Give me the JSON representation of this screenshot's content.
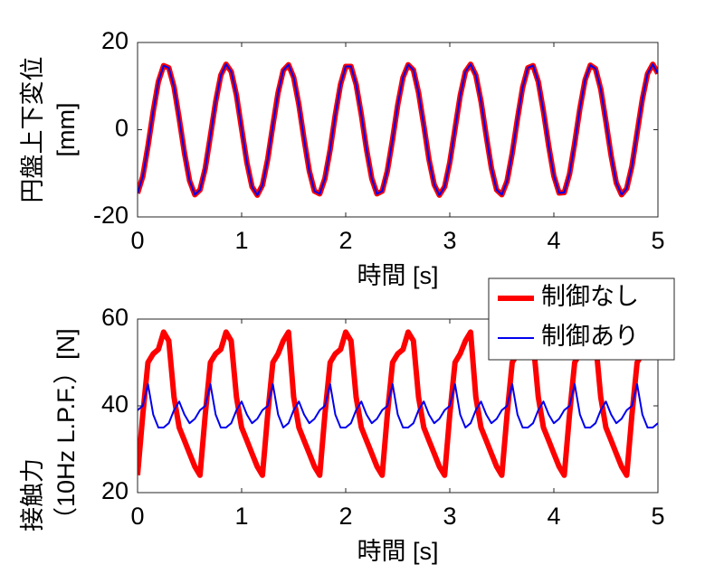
{
  "chart_data": [
    {
      "type": "line",
      "ylabel": [
        "円盤上下変位",
        "[mm]"
      ],
      "xlabel": "時間 [s]",
      "xlim": [
        0,
        5
      ],
      "xticks": [
        0,
        1,
        2,
        3,
        4,
        5
      ],
      "ylim": [
        -20,
        20
      ],
      "yticks": [
        -20,
        0,
        20
      ],
      "x": [
        0,
        0.05,
        0.1,
        0.15,
        0.2,
        0.25,
        0.3,
        0.35,
        0.4,
        0.45,
        0.5,
        0.55,
        0.6,
        0.65,
        0.7,
        0.75,
        0.8,
        0.85,
        0.9,
        0.95,
        1,
        1.05,
        1.1,
        1.15,
        1.2,
        1.25,
        1.3,
        1.35,
        1.4,
        1.45,
        1.5,
        1.55,
        1.6,
        1.65,
        1.7,
        1.75,
        1.8,
        1.85,
        1.9,
        1.95,
        2,
        2.05,
        2.1,
        2.15,
        2.2,
        2.25,
        2.3,
        2.35,
        2.4,
        2.45,
        2.5,
        2.55,
        2.6,
        2.65,
        2.7,
        2.75,
        2.8,
        2.85,
        2.9,
        2.95,
        3,
        3.05,
        3.1,
        3.15,
        3.2,
        3.25,
        3.3,
        3.35,
        3.4,
        3.45,
        3.5,
        3.55,
        3.6,
        3.65,
        3.7,
        3.75,
        3.8,
        3.85,
        3.9,
        3.95,
        4,
        4.05,
        4.1,
        4.15,
        4.2,
        4.25,
        4.3,
        4.35,
        4.4,
        4.45,
        4.5,
        4.55,
        4.6,
        4.65,
        4.7,
        4.75,
        4.8,
        4.85,
        4.9,
        4.95,
        5
      ],
      "series": [
        {
          "name": "制御なし",
          "color": "#ff0000",
          "width": 6,
          "values": [
            -14.6,
            -10.7,
            -3.8,
            4.2,
            11.0,
            14.7,
            14.2,
            9.8,
            2.6,
            -5.3,
            -11.7,
            -14.9,
            -13.8,
            -8.9,
            -1.4,
            6.4,
            12.5,
            15.0,
            13.3,
            7.9,
            0.2,
            -7.5,
            -13.1,
            -15.0,
            -12.7,
            -6.8,
            1.0,
            8.5,
            13.6,
            14.9,
            12.0,
            5.7,
            -2.2,
            -9.5,
            -14.1,
            -14.7,
            -11.2,
            -4.6,
            3.4,
            10.4,
            14.5,
            14.5,
            10.4,
            3.4,
            -4.5,
            -11.2,
            -14.7,
            -14.1,
            -9.5,
            -2.2,
            5.7,
            12.0,
            14.9,
            13.7,
            8.5,
            1.0,
            -6.8,
            -12.6,
            -15.0,
            -13.1,
            -7.5,
            0.2,
            7.8,
            13.3,
            15.0,
            12.5,
            6.5,
            -1.4,
            -8.8,
            -13.8,
            -14.9,
            -11.8,
            -5.4,
            2.5,
            9.7,
            14.2,
            14.7,
            11.0,
            4.2,
            -3.7,
            -10.6,
            -14.5,
            -14.4,
            -10.2,
            -3.1,
            4.9,
            11.4,
            14.8,
            14.0,
            9.3,
            1.9,
            -6.0,
            -12.2,
            -14.9,
            -13.5,
            -8.3,
            -0.7,
            7.0,
            12.8,
            15.0,
            12.9
          ]
        },
        {
          "name": "制御あり",
          "color": "#0000ee",
          "width": 2,
          "values": [
            -14.6,
            -10.7,
            -3.8,
            4.2,
            11.0,
            14.7,
            14.2,
            9.8,
            2.6,
            -5.3,
            -11.7,
            -14.9,
            -13.8,
            -8.9,
            -1.4,
            6.4,
            12.5,
            15.0,
            13.3,
            7.9,
            0.2,
            -7.5,
            -13.1,
            -15.0,
            -12.7,
            -6.8,
            1.0,
            8.5,
            13.6,
            14.9,
            12.0,
            5.7,
            -2.2,
            -9.5,
            -14.1,
            -14.7,
            -11.2,
            -4.6,
            3.4,
            10.4,
            14.5,
            14.5,
            10.4,
            3.4,
            -4.5,
            -11.2,
            -14.7,
            -14.1,
            -9.5,
            -2.2,
            5.7,
            12.0,
            14.9,
            13.7,
            8.5,
            1.0,
            -6.8,
            -12.6,
            -15.0,
            -13.1,
            -7.5,
            0.2,
            7.8,
            13.3,
            15.0,
            12.5,
            6.5,
            -1.4,
            -8.8,
            -13.8,
            -14.9,
            -11.8,
            -5.4,
            2.5,
            9.7,
            14.2,
            14.7,
            11.0,
            4.2,
            -3.7,
            -10.6,
            -14.5,
            -14.4,
            -10.2,
            -3.1,
            4.9,
            11.4,
            14.8,
            14.0,
            9.3,
            1.9,
            -6.0,
            -12.2,
            -14.9,
            -13.5,
            -8.3,
            -0.7,
            7.0,
            12.8,
            15.0,
            12.9
          ]
        }
      ]
    },
    {
      "type": "line",
      "ylabel": [
        "接触力",
        "（10Hz L.P.F.）[N]"
      ],
      "xlabel": "時間 [s]",
      "xlim": [
        0,
        5
      ],
      "xticks": [
        0,
        1,
        2,
        3,
        4,
        5
      ],
      "ylim": [
        20,
        60
      ],
      "yticks": [
        20,
        40,
        60
      ],
      "legend": "upper right",
      "x": [
        0,
        0.05,
        0.1,
        0.15,
        0.2,
        0.25,
        0.3,
        0.35,
        0.4,
        0.45,
        0.5,
        0.55,
        0.6,
        0.65,
        0.7,
        0.75,
        0.8,
        0.85,
        0.9,
        0.95,
        1,
        1.05,
        1.1,
        1.15,
        1.2,
        1.25,
        1.3,
        1.35,
        1.4,
        1.45,
        1.5,
        1.55,
        1.6,
        1.65,
        1.7,
        1.75,
        1.8,
        1.85,
        1.9,
        1.95,
        2,
        2.05,
        2.1,
        2.15,
        2.2,
        2.25,
        2.3,
        2.35,
        2.4,
        2.45,
        2.5,
        2.55,
        2.6,
        2.65,
        2.7,
        2.75,
        2.8,
        2.85,
        2.9,
        2.95,
        3,
        3.05,
        3.1,
        3.15,
        3.2,
        3.25,
        3.3,
        3.35,
        3.4,
        3.45,
        3.5,
        3.55,
        3.6,
        3.65,
        3.7,
        3.75,
        3.8,
        3.85,
        3.9,
        3.95,
        4,
        4.05,
        4.1,
        4.15,
        4.2,
        4.25,
        4.3,
        4.35,
        4.4,
        4.45,
        4.5,
        4.55,
        4.6,
        4.65,
        4.7,
        4.75,
        4.8,
        4.85,
        4.9,
        4.95,
        5
      ],
      "series": [
        {
          "name": "制御なし",
          "color": "#ff0000",
          "width": 6,
          "values": [
            24,
            38,
            50,
            52,
            53,
            57,
            55,
            42,
            35,
            32,
            29,
            26,
            24,
            38,
            50,
            52,
            53,
            57,
            55,
            42,
            35,
            32,
            29,
            26,
            24,
            38,
            50,
            52,
            55,
            57,
            42,
            35,
            32,
            29,
            26,
            24,
            38,
            50,
            52,
            53,
            57,
            55,
            42,
            35,
            32,
            29,
            26,
            24,
            38,
            50,
            52,
            53,
            57,
            55,
            42,
            35,
            32,
            29,
            26,
            24,
            38,
            50,
            52,
            55,
            57,
            42,
            35,
            32,
            29,
            26,
            24,
            38,
            50,
            52,
            53,
            57,
            55,
            42,
            35,
            32,
            29,
            26,
            24,
            38,
            50,
            52,
            53,
            57,
            55,
            42,
            35,
            32,
            29,
            26,
            24,
            38,
            50,
            52,
            53,
            57,
            55
          ]
        },
        {
          "name": "制御あり",
          "color": "#0000ee",
          "width": 2,
          "values": [
            39,
            40,
            45,
            38,
            35,
            35,
            36,
            39,
            41,
            38,
            36,
            37,
            39,
            40,
            45,
            38,
            35,
            35,
            36,
            39,
            41,
            38,
            36,
            37,
            39,
            40,
            45,
            38,
            35,
            36,
            39,
            41,
            38,
            36,
            37,
            39,
            40,
            45,
            38,
            35,
            35,
            36,
            39,
            41,
            38,
            36,
            37,
            39,
            40,
            45,
            38,
            35,
            35,
            36,
            39,
            41,
            38,
            36,
            37,
            39,
            40,
            45,
            38,
            35,
            36,
            39,
            41,
            38,
            36,
            37,
            39,
            40,
            45,
            38,
            35,
            35,
            36,
            39,
            41,
            38,
            36,
            37,
            39,
            40,
            45,
            38,
            35,
            35,
            36,
            39,
            41,
            38,
            36,
            37,
            39,
            40,
            45,
            38,
            35,
            35,
            36
          ]
        }
      ]
    }
  ]
}
